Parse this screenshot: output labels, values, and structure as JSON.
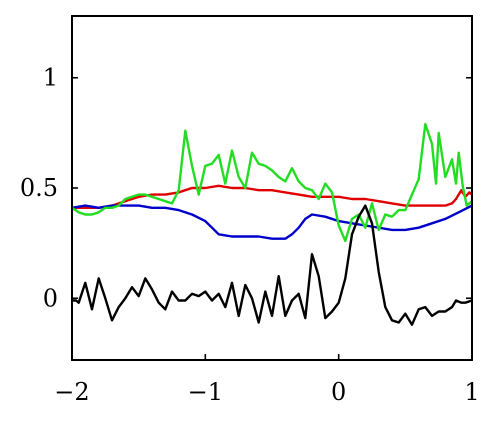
{
  "chart_data": {
    "type": "line",
    "title": "",
    "xlabel": "",
    "ylabel": "",
    "xlim": [
      -2,
      1
    ],
    "ylim": [
      -0.28,
      1.28
    ],
    "grid": false,
    "xticks": [
      {
        "value": -2,
        "label": "−2"
      },
      {
        "value": -1,
        "label": "−1"
      },
      {
        "value": 0,
        "label": "0"
      },
      {
        "value": 1,
        "label": "1"
      }
    ],
    "yticks": [
      {
        "value": 0,
        "label": "0"
      },
      {
        "value": 0.5,
        "label": "0.5"
      },
      {
        "value": 1,
        "label": "1"
      }
    ],
    "series": [
      {
        "color": "#e00000",
        "points": [
          [
            -2.0,
            0.41
          ],
          [
            -1.9,
            0.41
          ],
          [
            -1.8,
            0.41
          ],
          [
            -1.7,
            0.42
          ],
          [
            -1.6,
            0.44
          ],
          [
            -1.5,
            0.46
          ],
          [
            -1.4,
            0.47
          ],
          [
            -1.3,
            0.47
          ],
          [
            -1.2,
            0.48
          ],
          [
            -1.15,
            0.49
          ],
          [
            -1.1,
            0.5
          ],
          [
            -1.0,
            0.5
          ],
          [
            -0.9,
            0.51
          ],
          [
            -0.8,
            0.5
          ],
          [
            -0.7,
            0.5
          ],
          [
            -0.6,
            0.49
          ],
          [
            -0.5,
            0.49
          ],
          [
            -0.4,
            0.48
          ],
          [
            -0.3,
            0.47
          ],
          [
            -0.2,
            0.46
          ],
          [
            -0.1,
            0.46
          ],
          [
            0.0,
            0.46
          ],
          [
            0.1,
            0.45
          ],
          [
            0.2,
            0.45
          ],
          [
            0.3,
            0.44
          ],
          [
            0.4,
            0.43
          ],
          [
            0.5,
            0.42
          ],
          [
            0.6,
            0.42
          ],
          [
            0.7,
            0.42
          ],
          [
            0.8,
            0.42
          ],
          [
            0.85,
            0.43
          ],
          [
            0.88,
            0.45
          ],
          [
            0.92,
            0.49
          ],
          [
            0.95,
            0.46
          ],
          [
            0.98,
            0.48
          ],
          [
            1.0,
            0.47
          ]
        ]
      },
      {
        "color": "#0000cc",
        "points": [
          [
            -2.0,
            0.41
          ],
          [
            -1.9,
            0.42
          ],
          [
            -1.8,
            0.41
          ],
          [
            -1.7,
            0.42
          ],
          [
            -1.6,
            0.42
          ],
          [
            -1.5,
            0.42
          ],
          [
            -1.4,
            0.41
          ],
          [
            -1.3,
            0.41
          ],
          [
            -1.2,
            0.4
          ],
          [
            -1.1,
            0.38
          ],
          [
            -1.0,
            0.35
          ],
          [
            -0.95,
            0.32
          ],
          [
            -0.9,
            0.29
          ],
          [
            -0.8,
            0.28
          ],
          [
            -0.7,
            0.28
          ],
          [
            -0.6,
            0.28
          ],
          [
            -0.5,
            0.27
          ],
          [
            -0.4,
            0.27
          ],
          [
            -0.35,
            0.29
          ],
          [
            -0.3,
            0.32
          ],
          [
            -0.25,
            0.36
          ],
          [
            -0.2,
            0.38
          ],
          [
            -0.1,
            0.37
          ],
          [
            0.0,
            0.35
          ],
          [
            0.1,
            0.34
          ],
          [
            0.2,
            0.33
          ],
          [
            0.3,
            0.32
          ],
          [
            0.4,
            0.31
          ],
          [
            0.5,
            0.31
          ],
          [
            0.6,
            0.32
          ],
          [
            0.7,
            0.34
          ],
          [
            0.8,
            0.36
          ],
          [
            0.9,
            0.39
          ],
          [
            1.0,
            0.42
          ]
        ]
      },
      {
        "color": "#22dd22",
        "points": [
          [
            -2.0,
            0.41
          ],
          [
            -1.95,
            0.39
          ],
          [
            -1.9,
            0.38
          ],
          [
            -1.85,
            0.38
          ],
          [
            -1.8,
            0.39
          ],
          [
            -1.75,
            0.41
          ],
          [
            -1.7,
            0.41
          ],
          [
            -1.65,
            0.42
          ],
          [
            -1.6,
            0.45
          ],
          [
            -1.55,
            0.46
          ],
          [
            -1.5,
            0.47
          ],
          [
            -1.45,
            0.47
          ],
          [
            -1.4,
            0.46
          ],
          [
            -1.35,
            0.45
          ],
          [
            -1.3,
            0.44
          ],
          [
            -1.25,
            0.43
          ],
          [
            -1.2,
            0.49
          ],
          [
            -1.15,
            0.76
          ],
          [
            -1.1,
            0.6
          ],
          [
            -1.05,
            0.47
          ],
          [
            -1.0,
            0.6
          ],
          [
            -0.95,
            0.61
          ],
          [
            -0.9,
            0.65
          ],
          [
            -0.85,
            0.52
          ],
          [
            -0.8,
            0.67
          ],
          [
            -0.75,
            0.55
          ],
          [
            -0.7,
            0.5
          ],
          [
            -0.65,
            0.66
          ],
          [
            -0.6,
            0.61
          ],
          [
            -0.55,
            0.6
          ],
          [
            -0.5,
            0.58
          ],
          [
            -0.45,
            0.55
          ],
          [
            -0.4,
            0.53
          ],
          [
            -0.35,
            0.59
          ],
          [
            -0.3,
            0.53
          ],
          [
            -0.25,
            0.5
          ],
          [
            -0.2,
            0.49
          ],
          [
            -0.15,
            0.45
          ],
          [
            -0.1,
            0.52
          ],
          [
            -0.05,
            0.48
          ],
          [
            0.0,
            0.33
          ],
          [
            0.05,
            0.26
          ],
          [
            0.1,
            0.36
          ],
          [
            0.15,
            0.38
          ],
          [
            0.2,
            0.32
          ],
          [
            0.25,
            0.43
          ],
          [
            0.3,
            0.31
          ],
          [
            0.35,
            0.38
          ],
          [
            0.4,
            0.37
          ],
          [
            0.45,
            0.4
          ],
          [
            0.5,
            0.4
          ],
          [
            0.55,
            0.47
          ],
          [
            0.6,
            0.54
          ],
          [
            0.65,
            0.79
          ],
          [
            0.7,
            0.7
          ],
          [
            0.73,
            0.52
          ],
          [
            0.75,
            0.75
          ],
          [
            0.8,
            0.55
          ],
          [
            0.85,
            0.63
          ],
          [
            0.88,
            0.52
          ],
          [
            0.9,
            0.66
          ],
          [
            0.93,
            0.51
          ],
          [
            0.96,
            0.42
          ],
          [
            1.0,
            0.44
          ]
        ]
      },
      {
        "color": "#000000",
        "points": [
          [
            -2.0,
            -0.01
          ],
          [
            -1.97,
            -0.01
          ],
          [
            -1.95,
            -0.02
          ],
          [
            -1.9,
            0.07
          ],
          [
            -1.85,
            -0.05
          ],
          [
            -1.8,
            0.09
          ],
          [
            -1.75,
            0.0
          ],
          [
            -1.7,
            -0.1
          ],
          [
            -1.65,
            -0.04
          ],
          [
            -1.6,
            0.0
          ],
          [
            -1.55,
            0.05
          ],
          [
            -1.5,
            0.01
          ],
          [
            -1.45,
            0.09
          ],
          [
            -1.4,
            0.04
          ],
          [
            -1.35,
            -0.02
          ],
          [
            -1.3,
            -0.05
          ],
          [
            -1.25,
            0.03
          ],
          [
            -1.2,
            -0.01
          ],
          [
            -1.15,
            -0.01
          ],
          [
            -1.1,
            0.02
          ],
          [
            -1.05,
            0.01
          ],
          [
            -1.0,
            0.03
          ],
          [
            -0.95,
            -0.01
          ],
          [
            -0.9,
            0.02
          ],
          [
            -0.85,
            -0.04
          ],
          [
            -0.8,
            0.07
          ],
          [
            -0.75,
            -0.08
          ],
          [
            -0.7,
            0.06
          ],
          [
            -0.65,
            0.0
          ],
          [
            -0.6,
            -0.11
          ],
          [
            -0.55,
            0.03
          ],
          [
            -0.5,
            -0.08
          ],
          [
            -0.45,
            0.1
          ],
          [
            -0.4,
            -0.08
          ],
          [
            -0.35,
            -0.01
          ],
          [
            -0.3,
            0.02
          ],
          [
            -0.25,
            -0.09
          ],
          [
            -0.2,
            0.2
          ],
          [
            -0.15,
            0.1
          ],
          [
            -0.1,
            -0.09
          ],
          [
            -0.05,
            -0.06
          ],
          [
            0.0,
            -0.02
          ],
          [
            0.05,
            0.09
          ],
          [
            0.1,
            0.29
          ],
          [
            0.15,
            0.37
          ],
          [
            0.2,
            0.42
          ],
          [
            0.25,
            0.34
          ],
          [
            0.3,
            0.12
          ],
          [
            0.35,
            -0.04
          ],
          [
            0.4,
            -0.1
          ],
          [
            0.45,
            -0.11
          ],
          [
            0.5,
            -0.07
          ],
          [
            0.55,
            -0.12
          ],
          [
            0.6,
            -0.05
          ],
          [
            0.65,
            -0.04
          ],
          [
            0.7,
            -0.08
          ],
          [
            0.75,
            -0.06
          ],
          [
            0.8,
            -0.06
          ],
          [
            0.85,
            -0.04
          ],
          [
            0.88,
            -0.01
          ],
          [
            0.92,
            -0.02
          ],
          [
            0.95,
            -0.02
          ],
          [
            1.0,
            -0.01
          ]
        ]
      }
    ]
  }
}
